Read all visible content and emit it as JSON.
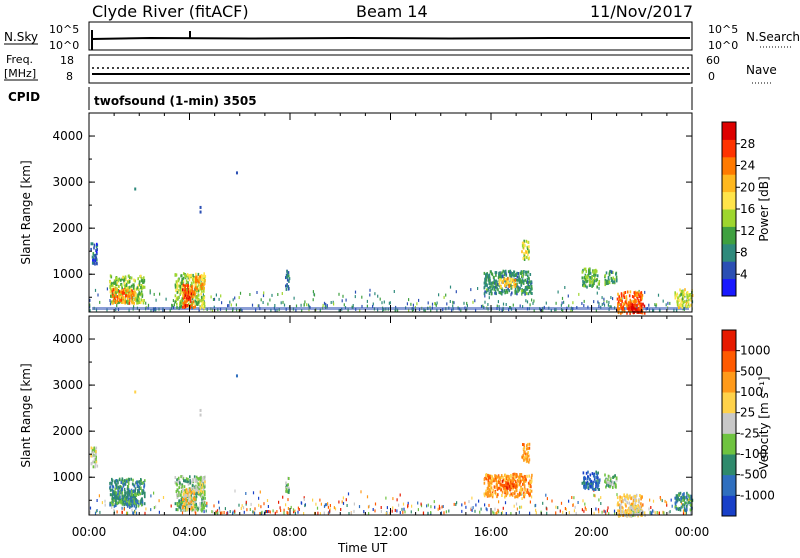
{
  "header": {
    "title": "Clyde River (fitACF)",
    "beam": "Beam 14",
    "date": "11/Nov/2017"
  },
  "params_panel": {
    "nsky_label": "N.Sky",
    "nsky_ticks": [
      "10^5",
      "10^0"
    ],
    "nsearch_label": "N.Search",
    "nsearch_ticks": [
      "10^5",
      "10^0"
    ],
    "freq_label_line1": "Freq.",
    "freq_label_line2": "[MHz]",
    "freq_ticks": [
      "18",
      "8"
    ],
    "nave_label": "Nave",
    "nave_ticks": [
      "60",
      "0"
    ],
    "cpid_label": "CPID",
    "cpid_value": "twofsound (1-min) 3505"
  },
  "chart_data": [
    {
      "type": "heatmap",
      "name": "power-panel",
      "ylabel": "Slant Range [km]",
      "ylim": [
        180,
        4500
      ],
      "yticks": [
        1000,
        2000,
        3000,
        4000
      ],
      "xlim_hours": [
        0,
        24
      ],
      "colorbar": {
        "label": "Power [dB]",
        "range": [
          0,
          32
        ],
        "ticks": [
          "4",
          "8",
          "12",
          "16",
          "20",
          "24",
          "28"
        ],
        "colors": [
          "#1919ff",
          "#2b4fb4",
          "#2f8a7c",
          "#3fa040",
          "#9ed62e",
          "#ffe44a",
          "#ffb81f",
          "#ff7a00",
          "#ff3300",
          "#dd0000"
        ]
      },
      "regions": [
        {
          "t0": 0.05,
          "t1": 0.3,
          "r0": 1250,
          "r1": 1700,
          "v": 6
        },
        {
          "t0": 0.8,
          "t1": 2.2,
          "r0": 400,
          "r1": 1000,
          "v": 14
        },
        {
          "t0": 0.9,
          "t1": 1.8,
          "r0": 400,
          "r1": 700,
          "v": 23
        },
        {
          "t0": 3.4,
          "t1": 4.6,
          "r0": 300,
          "r1": 1050,
          "v": 15
        },
        {
          "t0": 3.7,
          "t1": 4.2,
          "r0": 300,
          "r1": 800,
          "v": 26
        },
        {
          "t0": 4.2,
          "t1": 4.6,
          "r0": 700,
          "r1": 1000,
          "v": 22
        },
        {
          "t0": 7.8,
          "t1": 7.95,
          "r0": 700,
          "r1": 1100,
          "v": 7
        },
        {
          "t0": 15.7,
          "t1": 17.6,
          "r0": 600,
          "r1": 1100,
          "v": 9
        },
        {
          "t0": 16.3,
          "t1": 17.0,
          "r0": 750,
          "r1": 950,
          "v": 20
        },
        {
          "t0": 17.2,
          "t1": 17.5,
          "r0": 1350,
          "r1": 1750,
          "v": 16
        },
        {
          "t0": 19.6,
          "t1": 20.3,
          "r0": 750,
          "r1": 1150,
          "v": 12
        },
        {
          "t0": 20.5,
          "t1": 21.0,
          "r0": 800,
          "r1": 1100,
          "v": 10
        },
        {
          "t0": 21.0,
          "t1": 22.0,
          "r0": 180,
          "r1": 650,
          "v": 25
        },
        {
          "t0": 21.5,
          "t1": 22.1,
          "r0": 180,
          "r1": 400,
          "v": 29
        },
        {
          "t0": 23.3,
          "t1": 24.0,
          "r0": 300,
          "r1": 700,
          "v": 16
        }
      ],
      "isolated_points": [
        {
          "t": 1.8,
          "r": 2850,
          "v": 8
        },
        {
          "t": 4.4,
          "r": 2450,
          "v": 6
        },
        {
          "t": 4.4,
          "r": 2350,
          "v": 6
        },
        {
          "t": 5.85,
          "r": 3200,
          "v": 6
        }
      ]
    },
    {
      "type": "heatmap",
      "name": "velocity-panel",
      "ylabel": "Slant Range [km]",
      "ylim": [
        180,
        4500
      ],
      "yticks": [
        1000,
        2000,
        3000,
        4000
      ],
      "xlim_hours": [
        0,
        24
      ],
      "xticks": [
        "00:00",
        "04:00",
        "08:00",
        "12:00",
        "16:00",
        "20:00",
        "00:00"
      ],
      "xlabel": "Time UT",
      "colorbar": {
        "label": "Velocity [m s⁻¹]",
        "ticks": [
          "1000",
          "500",
          "100",
          "25",
          "-25",
          "-100",
          "-500",
          "-1000"
        ],
        "colors": [
          "#1840c8",
          "#2f6fbf",
          "#2f8a6c",
          "#6fc340",
          "#c8c8c8",
          "#ffd24a",
          "#ff9a1a",
          "#ff5a00",
          "#e61a00"
        ]
      },
      "regions": [
        {
          "t0": 0.05,
          "t1": 0.3,
          "r0": 1250,
          "r1": 1700,
          "v": 4
        },
        {
          "t0": 0.8,
          "t1": 2.2,
          "r0": 400,
          "r1": 1000,
          "v": 2
        },
        {
          "t0": 0.9,
          "t1": 1.8,
          "r0": 400,
          "r1": 700,
          "v": 2
        },
        {
          "t0": 3.4,
          "t1": 4.6,
          "r0": 300,
          "r1": 1050,
          "v": 3
        },
        {
          "t0": 3.7,
          "t1": 4.2,
          "r0": 300,
          "r1": 800,
          "v": 5
        },
        {
          "t0": 4.2,
          "t1": 4.6,
          "r0": 700,
          "r1": 1000,
          "v": 4
        },
        {
          "t0": 7.8,
          "t1": 7.95,
          "r0": 700,
          "r1": 1100,
          "v": 3
        },
        {
          "t0": 15.7,
          "t1": 17.6,
          "r0": 600,
          "r1": 1100,
          "v": 6
        },
        {
          "t0": 16.3,
          "t1": 17.0,
          "r0": 750,
          "r1": 950,
          "v": 7
        },
        {
          "t0": 17.2,
          "t1": 17.5,
          "r0": 1350,
          "r1": 1750,
          "v": 6
        },
        {
          "t0": 19.6,
          "t1": 20.3,
          "r0": 750,
          "r1": 1150,
          "v": 1
        },
        {
          "t0": 20.5,
          "t1": 21.0,
          "r0": 800,
          "r1": 1100,
          "v": 3
        },
        {
          "t0": 21.0,
          "t1": 22.0,
          "r0": 180,
          "r1": 650,
          "v": 5
        },
        {
          "t0": 21.5,
          "t1": 22.1,
          "r0": 180,
          "r1": 400,
          "v": 4
        },
        {
          "t0": 23.3,
          "t1": 24.0,
          "r0": 300,
          "r1": 700,
          "v": 2
        }
      ],
      "isolated_points": [
        {
          "t": 1.8,
          "r": 2850,
          "v": 5
        },
        {
          "t": 4.4,
          "r": 2450,
          "v": 4
        },
        {
          "t": 4.4,
          "r": 2350,
          "v": 4
        },
        {
          "t": 5.85,
          "r": 3200,
          "v": 1
        }
      ]
    }
  ]
}
